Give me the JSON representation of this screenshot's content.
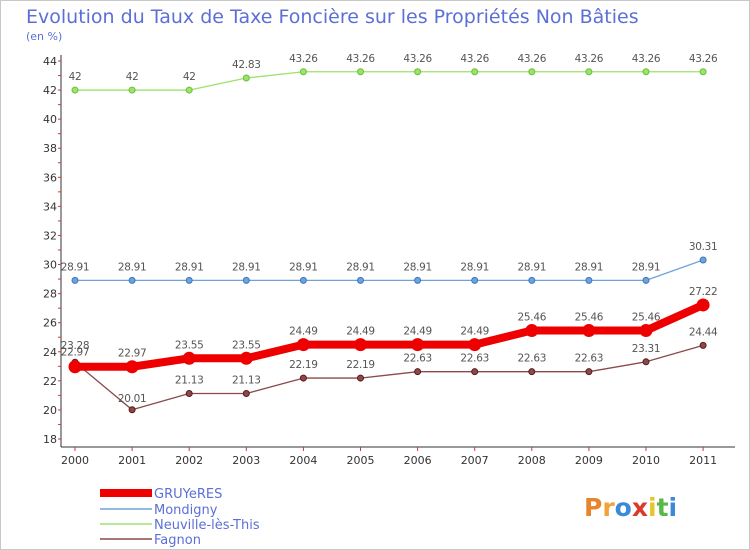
{
  "chart_data": {
    "type": "line",
    "title": "Evolution du Taux de Taxe Foncière sur les Propriétés Non Bâties",
    "subtitle": "(en %)",
    "xlabel": "",
    "ylabel": "",
    "x": [
      "2000",
      "2001",
      "2002",
      "2003",
      "2004",
      "2005",
      "2006",
      "2007",
      "2008",
      "2009",
      "2010",
      "2011"
    ],
    "ylim": [
      18,
      44
    ],
    "yticks": [
      18,
      20,
      22,
      24,
      26,
      28,
      30,
      32,
      34,
      36,
      38,
      40,
      42,
      44
    ],
    "grid": false,
    "legend_position": "bottom-left",
    "series": [
      {
        "name": "GRUYeRES",
        "color": "#ee0000",
        "values": [
          22.97,
          22.97,
          23.55,
          23.55,
          24.49,
          24.49,
          24.49,
          24.49,
          25.46,
          25.46,
          25.46,
          27.22
        ],
        "labels": [
          "22.97",
          "22.97",
          "23.55",
          "23.55",
          "24.49",
          "24.49",
          "24.49",
          "24.49",
          "25.46",
          "25.46",
          "25.46",
          "27.22"
        ]
      },
      {
        "name": "Mondigny",
        "color": "#6fa3d8",
        "values": [
          28.91,
          28.91,
          28.91,
          28.91,
          28.91,
          28.91,
          28.91,
          28.91,
          28.91,
          28.91,
          28.91,
          30.31
        ],
        "labels": [
          "28.91",
          "28.91",
          "28.91",
          "28.91",
          "28.91",
          "28.91",
          "28.91",
          "28.91",
          "28.91",
          "28.91",
          "28.91",
          "30.31"
        ]
      },
      {
        "name": "Neuville-lès-This",
        "color": "#9be36b",
        "values": [
          42,
          42,
          42,
          42.83,
          43.26,
          43.26,
          43.26,
          43.26,
          43.26,
          43.26,
          43.26,
          43.26
        ],
        "labels": [
          "42",
          "42",
          "42",
          "42.83",
          "43.26",
          "43.26",
          "43.26",
          "43.26",
          "43.26",
          "43.26",
          "43.26",
          "43.26"
        ]
      },
      {
        "name": "Fagnon",
        "color": "#8a4a4a",
        "values": [
          23.28,
          20.01,
          21.13,
          21.13,
          22.19,
          22.19,
          22.63,
          22.63,
          22.63,
          22.63,
          23.31,
          24.44
        ],
        "labels": [
          "23.28",
          "20.01",
          "21.13",
          "21.13",
          "22.19",
          "22.19",
          "22.63",
          "22.63",
          "22.63",
          "22.63",
          "23.31",
          "24.44"
        ]
      }
    ]
  },
  "branding": {
    "logo_text": "Proxiti",
    "logo_colors": [
      "#e8842a",
      "#f2a23a",
      "#3a8ad8",
      "#d93a2a",
      "#e8c62a",
      "#5ab84a",
      "#3a8ad8"
    ]
  }
}
